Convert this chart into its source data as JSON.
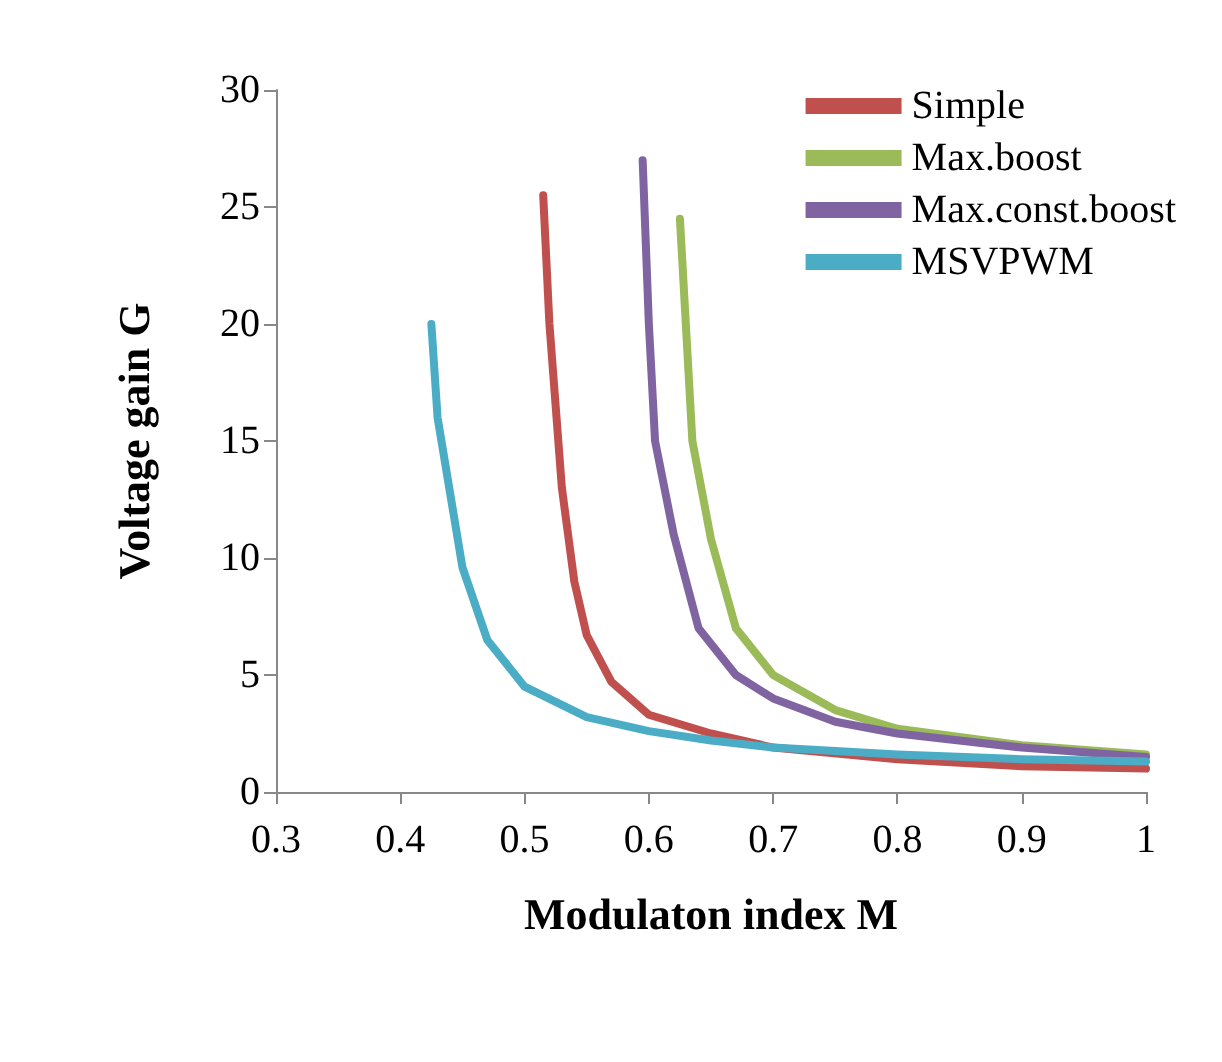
{
  "chart_data": {
    "type": "line",
    "xlabel": "Modulaton index M",
    "ylabel": "Voltage gain G",
    "xlim": [
      0.3,
      1
    ],
    "xticks": [
      0.3,
      0.4,
      0.5,
      0.6,
      0.7,
      0.8,
      0.9,
      1
    ],
    "ylim": [
      0,
      30
    ],
    "yticks": [
      0,
      5,
      10,
      15,
      20,
      25,
      30
    ],
    "grid": false,
    "legend": "top right",
    "marker": "none",
    "line_style": "solid",
    "series": [
      {
        "name": "Simple",
        "color": "#c0504d",
        "x": [
          0.515,
          0.52,
          0.53,
          0.54,
          0.55,
          0.57,
          0.6,
          0.65,
          0.7,
          0.8,
          0.9,
          1
        ],
        "values": [
          25.5,
          20,
          13,
          9,
          6.7,
          4.7,
          3.3,
          2.5,
          1.9,
          1.4,
          1.1,
          1
        ]
      },
      {
        "name": "Max.boost",
        "color": "#9bbb59",
        "x": [
          0.625,
          0.635,
          0.65,
          0.67,
          0.7,
          0.75,
          0.8,
          0.9,
          1
        ],
        "values": [
          24.5,
          15,
          10.8,
          7,
          5,
          3.5,
          2.7,
          2,
          1.6
        ]
      },
      {
        "name": "Max.const.boost",
        "color": "#8064a2",
        "x": [
          0.595,
          0.6,
          0.605,
          0.62,
          0.64,
          0.67,
          0.7,
          0.75,
          0.8,
          0.9,
          1
        ],
        "values": [
          27,
          20,
          15,
          11,
          7,
          5,
          4,
          3,
          2.5,
          1.9,
          1.5
        ]
      },
      {
        "name": "MSVPWM",
        "color": "#4bacc6",
        "x": [
          0.425,
          0.43,
          0.44,
          0.45,
          0.47,
          0.5,
          0.55,
          0.6,
          0.65,
          0.7,
          0.8,
          0.9,
          1
        ],
        "values": [
          20,
          16,
          12.8,
          9.6,
          6.5,
          4.5,
          3.2,
          2.6,
          2.2,
          1.9,
          1.6,
          1.4,
          1.3
        ]
      }
    ]
  }
}
